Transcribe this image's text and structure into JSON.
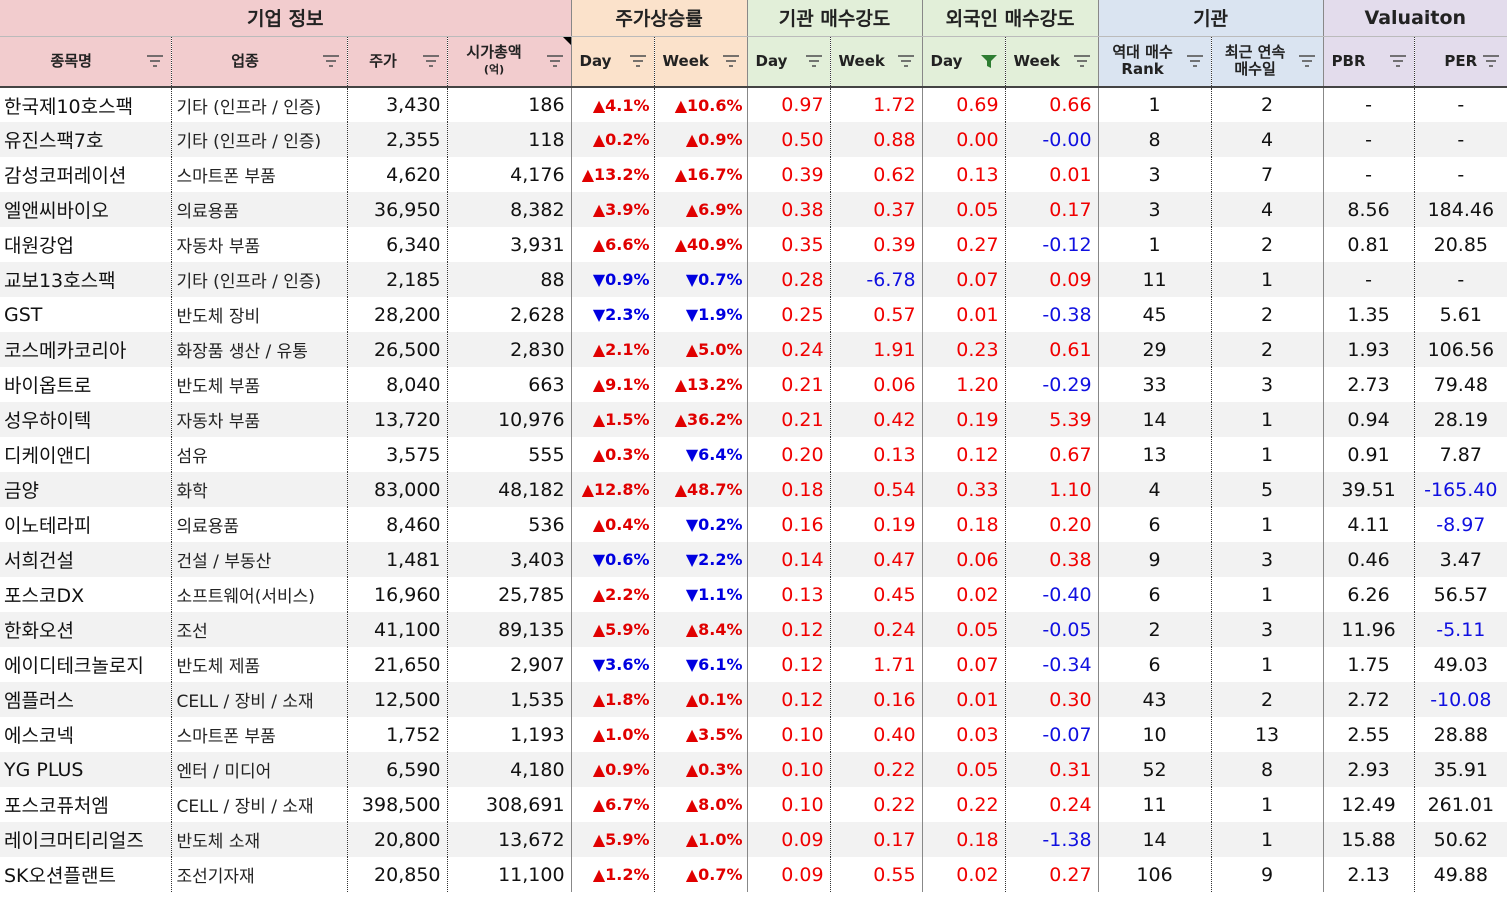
{
  "groups": {
    "company": "기업 정보",
    "price_rise": "주가상승률",
    "inst_strength": "기관 매수강도",
    "foreign_strength": "외국인 매수강도",
    "inst": "기관",
    "valuation": "Valuaiton"
  },
  "headers": {
    "name": "종목명",
    "industry": "업종",
    "price": "주가",
    "mcap": "시가총액",
    "mcap_unit": "(억)",
    "day": "Day",
    "week": "Week",
    "rank_l1": "역대 매수",
    "rank_l2": "Rank",
    "days_l1": "최근 연속",
    "days_l2": "매수일",
    "pbr": "PBR",
    "per": "PER"
  },
  "colors": {
    "up": "#e00000",
    "down": "#0000e0",
    "positive_value": "#f00000",
    "negative_value": "#1010e0",
    "filter_active": "#2e7d32"
  },
  "rows": [
    {
      "name": "한국제10호스팩",
      "industry": "기타 (인프라 / 인증)",
      "price": "3,430",
      "mcap": "186",
      "pd": "4.1%",
      "pd_dir": "up",
      "pw": "10.6%",
      "pw_dir": "up",
      "id": "0.97",
      "iw": "1.72",
      "fd": "0.69",
      "fw": "0.66",
      "rank": "1",
      "days": "2",
      "pbr": "-",
      "per": "-"
    },
    {
      "name": "유진스팩7호",
      "industry": "기타 (인프라 / 인증)",
      "price": "2,355",
      "mcap": "118",
      "pd": "0.2%",
      "pd_dir": "up",
      "pw": "0.9%",
      "pw_dir": "up",
      "id": "0.50",
      "iw": "0.88",
      "fd": "0.00",
      "fw": "-0.00",
      "rank": "8",
      "days": "4",
      "pbr": "-",
      "per": "-"
    },
    {
      "name": "감성코퍼레이션",
      "industry": "스마트폰 부품",
      "price": "4,620",
      "mcap": "4,176",
      "pd": "13.2%",
      "pd_dir": "up",
      "pw": "16.7%",
      "pw_dir": "up",
      "id": "0.39",
      "iw": "0.62",
      "fd": "0.13",
      "fw": "0.01",
      "rank": "3",
      "days": "7",
      "pbr": "-",
      "per": "-"
    },
    {
      "name": "엘앤씨바이오",
      "industry": "의료용품",
      "price": "36,950",
      "mcap": "8,382",
      "pd": "3.9%",
      "pd_dir": "up",
      "pw": "6.9%",
      "pw_dir": "up",
      "id": "0.38",
      "iw": "0.37",
      "fd": "0.05",
      "fw": "0.17",
      "rank": "3",
      "days": "4",
      "pbr": "8.56",
      "per": "184.46"
    },
    {
      "name": "대원강업",
      "industry": "자동차 부품",
      "price": "6,340",
      "mcap": "3,931",
      "pd": "6.6%",
      "pd_dir": "up",
      "pw": "40.9%",
      "pw_dir": "up",
      "id": "0.35",
      "iw": "0.39",
      "fd": "0.27",
      "fw": "-0.12",
      "rank": "1",
      "days": "2",
      "pbr": "0.81",
      "per": "20.85"
    },
    {
      "name": "교보13호스팩",
      "industry": "기타 (인프라 / 인증)",
      "price": "2,185",
      "mcap": "88",
      "pd": "0.9%",
      "pd_dir": "down",
      "pw": "0.7%",
      "pw_dir": "down",
      "id": "0.28",
      "iw": "-6.78",
      "fd": "0.07",
      "fw": "0.09",
      "rank": "11",
      "days": "1",
      "pbr": "-",
      "per": "-"
    },
    {
      "name": "GST",
      "industry": "반도체 장비",
      "price": "28,200",
      "mcap": "2,628",
      "pd": "2.3%",
      "pd_dir": "down",
      "pw": "1.9%",
      "pw_dir": "down",
      "id": "0.25",
      "iw": "0.57",
      "fd": "0.01",
      "fw": "-0.38",
      "rank": "45",
      "days": "2",
      "pbr": "1.35",
      "per": "5.61"
    },
    {
      "name": "코스메카코리아",
      "industry": "화장품 생산 / 유통",
      "price": "26,500",
      "mcap": "2,830",
      "pd": "2.1%",
      "pd_dir": "up",
      "pw": "5.0%",
      "pw_dir": "up",
      "id": "0.24",
      "iw": "1.91",
      "fd": "0.23",
      "fw": "0.61",
      "rank": "29",
      "days": "2",
      "pbr": "1.93",
      "per": "106.56"
    },
    {
      "name": "바이옵트로",
      "industry": "반도체 부품",
      "price": "8,040",
      "mcap": "663",
      "pd": "9.1%",
      "pd_dir": "up",
      "pw": "13.2%",
      "pw_dir": "up",
      "id": "0.21",
      "iw": "0.06",
      "fd": "1.20",
      "fw": "-0.29",
      "rank": "33",
      "days": "3",
      "pbr": "2.73",
      "per": "79.48"
    },
    {
      "name": "성우하이텍",
      "industry": "자동차 부품",
      "price": "13,720",
      "mcap": "10,976",
      "pd": "1.5%",
      "pd_dir": "up",
      "pw": "36.2%",
      "pw_dir": "up",
      "id": "0.21",
      "iw": "0.42",
      "fd": "0.19",
      "fw": "5.39",
      "rank": "14",
      "days": "1",
      "pbr": "0.94",
      "per": "28.19"
    },
    {
      "name": "디케이앤디",
      "industry": "섬유",
      "price": "3,575",
      "mcap": "555",
      "pd": "0.3%",
      "pd_dir": "up",
      "pw": "6.4%",
      "pw_dir": "down",
      "id": "0.20",
      "iw": "0.13",
      "fd": "0.12",
      "fw": "0.67",
      "rank": "13",
      "days": "1",
      "pbr": "0.91",
      "per": "7.87"
    },
    {
      "name": "금양",
      "industry": "화학",
      "price": "83,000",
      "mcap": "48,182",
      "pd": "12.8%",
      "pd_dir": "up",
      "pw": "48.7%",
      "pw_dir": "up",
      "id": "0.18",
      "iw": "0.54",
      "fd": "0.33",
      "fw": "1.10",
      "rank": "4",
      "days": "5",
      "pbr": "39.51",
      "per": "-165.40"
    },
    {
      "name": "이노테라피",
      "industry": "의료용품",
      "price": "8,460",
      "mcap": "536",
      "pd": "0.4%",
      "pd_dir": "up",
      "pw": "0.2%",
      "pw_dir": "down",
      "id": "0.16",
      "iw": "0.19",
      "fd": "0.18",
      "fw": "0.20",
      "rank": "6",
      "days": "1",
      "pbr": "4.11",
      "per": "-8.97"
    },
    {
      "name": "서희건설",
      "industry": "건설 / 부동산",
      "price": "1,481",
      "mcap": "3,403",
      "pd": "0.6%",
      "pd_dir": "down",
      "pw": "2.2%",
      "pw_dir": "down",
      "id": "0.14",
      "iw": "0.47",
      "fd": "0.06",
      "fw": "0.38",
      "rank": "9",
      "days": "3",
      "pbr": "0.46",
      "per": "3.47"
    },
    {
      "name": "포스코DX",
      "industry": "소프트웨어(서비스)",
      "price": "16,960",
      "mcap": "25,785",
      "pd": "2.2%",
      "pd_dir": "up",
      "pw": "1.1%",
      "pw_dir": "down",
      "id": "0.13",
      "iw": "0.45",
      "fd": "0.02",
      "fw": "-0.40",
      "rank": "6",
      "days": "1",
      "pbr": "6.26",
      "per": "56.57"
    },
    {
      "name": "한화오션",
      "industry": "조선",
      "price": "41,100",
      "mcap": "89,135",
      "pd": "5.9%",
      "pd_dir": "up",
      "pw": "8.4%",
      "pw_dir": "up",
      "id": "0.12",
      "iw": "0.24",
      "fd": "0.05",
      "fw": "-0.05",
      "rank": "2",
      "days": "3",
      "pbr": "11.96",
      "per": "-5.11"
    },
    {
      "name": "에이디테크놀로지",
      "industry": "반도체 제품",
      "price": "21,650",
      "mcap": "2,907",
      "pd": "3.6%",
      "pd_dir": "down",
      "pw": "6.1%",
      "pw_dir": "down",
      "id": "0.12",
      "iw": "1.71",
      "fd": "0.07",
      "fw": "-0.34",
      "rank": "6",
      "days": "1",
      "pbr": "1.75",
      "per": "49.03"
    },
    {
      "name": "엠플러스",
      "industry": "CELL / 장비 / 소재",
      "price": "12,500",
      "mcap": "1,535",
      "pd": "1.8%",
      "pd_dir": "up",
      "pw": "0.1%",
      "pw_dir": "up",
      "id": "0.12",
      "iw": "0.16",
      "fd": "0.01",
      "fw": "0.30",
      "rank": "43",
      "days": "2",
      "pbr": "2.72",
      "per": "-10.08"
    },
    {
      "name": "에스코넥",
      "industry": "스마트폰 부품",
      "price": "1,752",
      "mcap": "1,193",
      "pd": "1.0%",
      "pd_dir": "up",
      "pw": "3.5%",
      "pw_dir": "up",
      "id": "0.10",
      "iw": "0.40",
      "fd": "0.03",
      "fw": "-0.07",
      "rank": "10",
      "days": "13",
      "pbr": "2.55",
      "per": "28.88"
    },
    {
      "name": "YG PLUS",
      "industry": "엔터 / 미디어",
      "price": "6,590",
      "mcap": "4,180",
      "pd": "0.9%",
      "pd_dir": "up",
      "pw": "0.3%",
      "pw_dir": "up",
      "id": "0.10",
      "iw": "0.22",
      "fd": "0.05",
      "fw": "0.31",
      "rank": "52",
      "days": "8",
      "pbr": "2.93",
      "per": "35.91"
    },
    {
      "name": "포스코퓨처엠",
      "industry": "CELL / 장비 / 소재",
      "price": "398,500",
      "mcap": "308,691",
      "pd": "6.7%",
      "pd_dir": "up",
      "pw": "8.0%",
      "pw_dir": "up",
      "id": "0.10",
      "iw": "0.22",
      "fd": "0.22",
      "fw": "0.24",
      "rank": "11",
      "days": "1",
      "pbr": "12.49",
      "per": "261.01"
    },
    {
      "name": "레이크머티리얼즈",
      "industry": "반도체 소재",
      "price": "20,800",
      "mcap": "13,672",
      "pd": "5.9%",
      "pd_dir": "up",
      "pw": "1.0%",
      "pw_dir": "up",
      "id": "0.09",
      "iw": "0.17",
      "fd": "0.18",
      "fw": "-1.38",
      "rank": "14",
      "days": "1",
      "pbr": "15.88",
      "per": "50.62"
    },
    {
      "name": "SK오션플랜트",
      "industry": "조선기자재",
      "price": "20,850",
      "mcap": "11,100",
      "pd": "1.2%",
      "pd_dir": "up",
      "pw": "0.7%",
      "pw_dir": "up",
      "id": "0.09",
      "iw": "0.55",
      "fd": "0.02",
      "fw": "0.27",
      "rank": "106",
      "days": "9",
      "pbr": "2.13",
      "per": "49.88"
    }
  ]
}
